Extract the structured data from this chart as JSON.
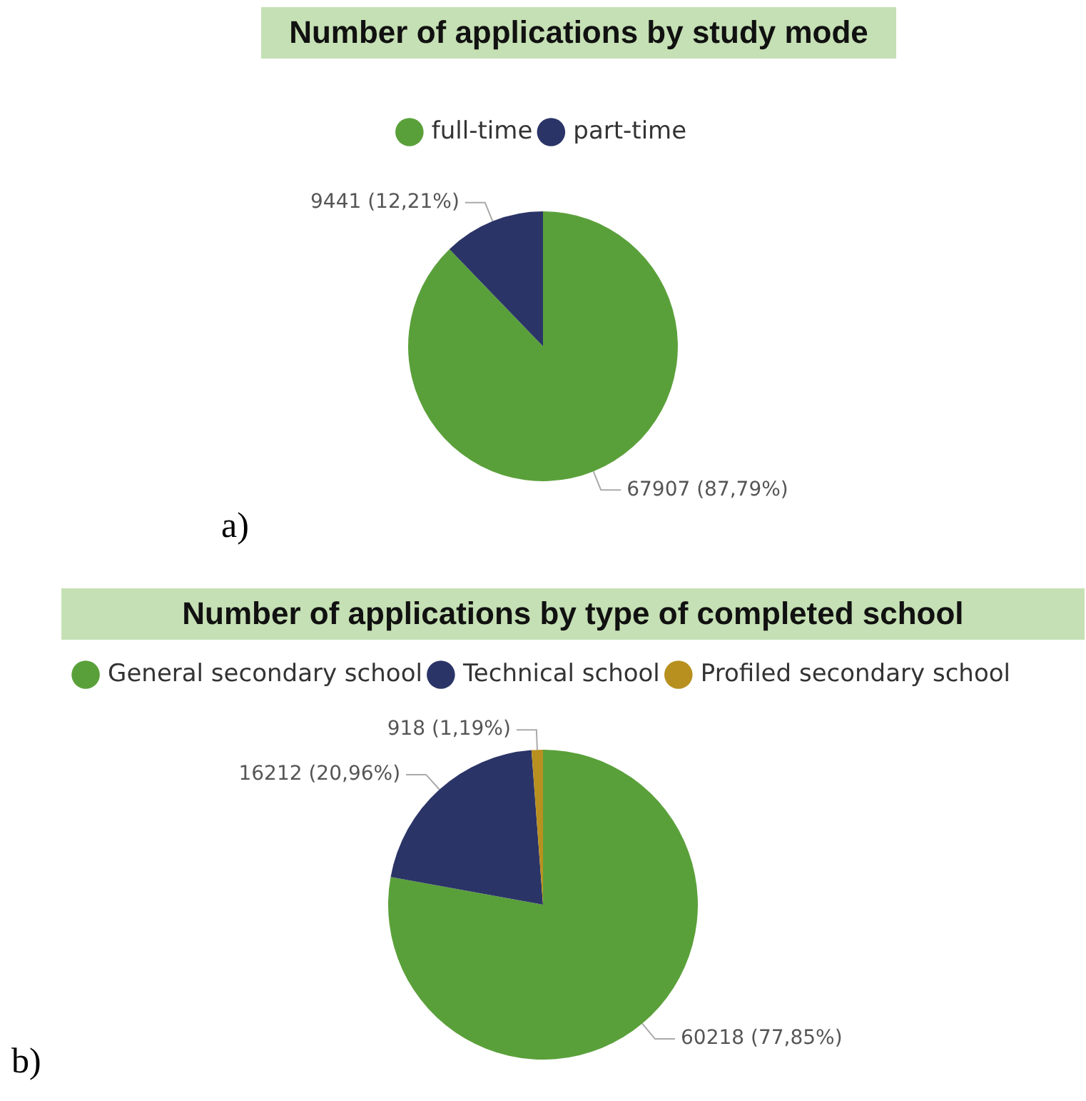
{
  "chart_data": [
    {
      "type": "pie",
      "title": "Number of applications by study mode",
      "categories": [
        "full-time",
        "part-time"
      ],
      "values": [
        67907,
        9441
      ],
      "value_labels": [
        "67907 (87,79%)",
        "9441 (12,21%)"
      ],
      "colors": [
        "#5aa03a",
        "#2b3467"
      ],
      "legend": "top",
      "annotations": [
        "a)"
      ]
    },
    {
      "type": "pie",
      "title": "Number of applications by type of completed school",
      "categories": [
        "General secondary school",
        "Technical school",
        "Profiled secondary school"
      ],
      "values": [
        60218,
        16212,
        918
      ],
      "value_labels": [
        "60218 (77,85%)",
        "16212 (20,96%)",
        "918 (1,19%)"
      ],
      "colors": [
        "#5aa03a",
        "#2b3467",
        "#b8901f"
      ],
      "legend": "top",
      "annotations": [
        "b)"
      ]
    }
  ]
}
